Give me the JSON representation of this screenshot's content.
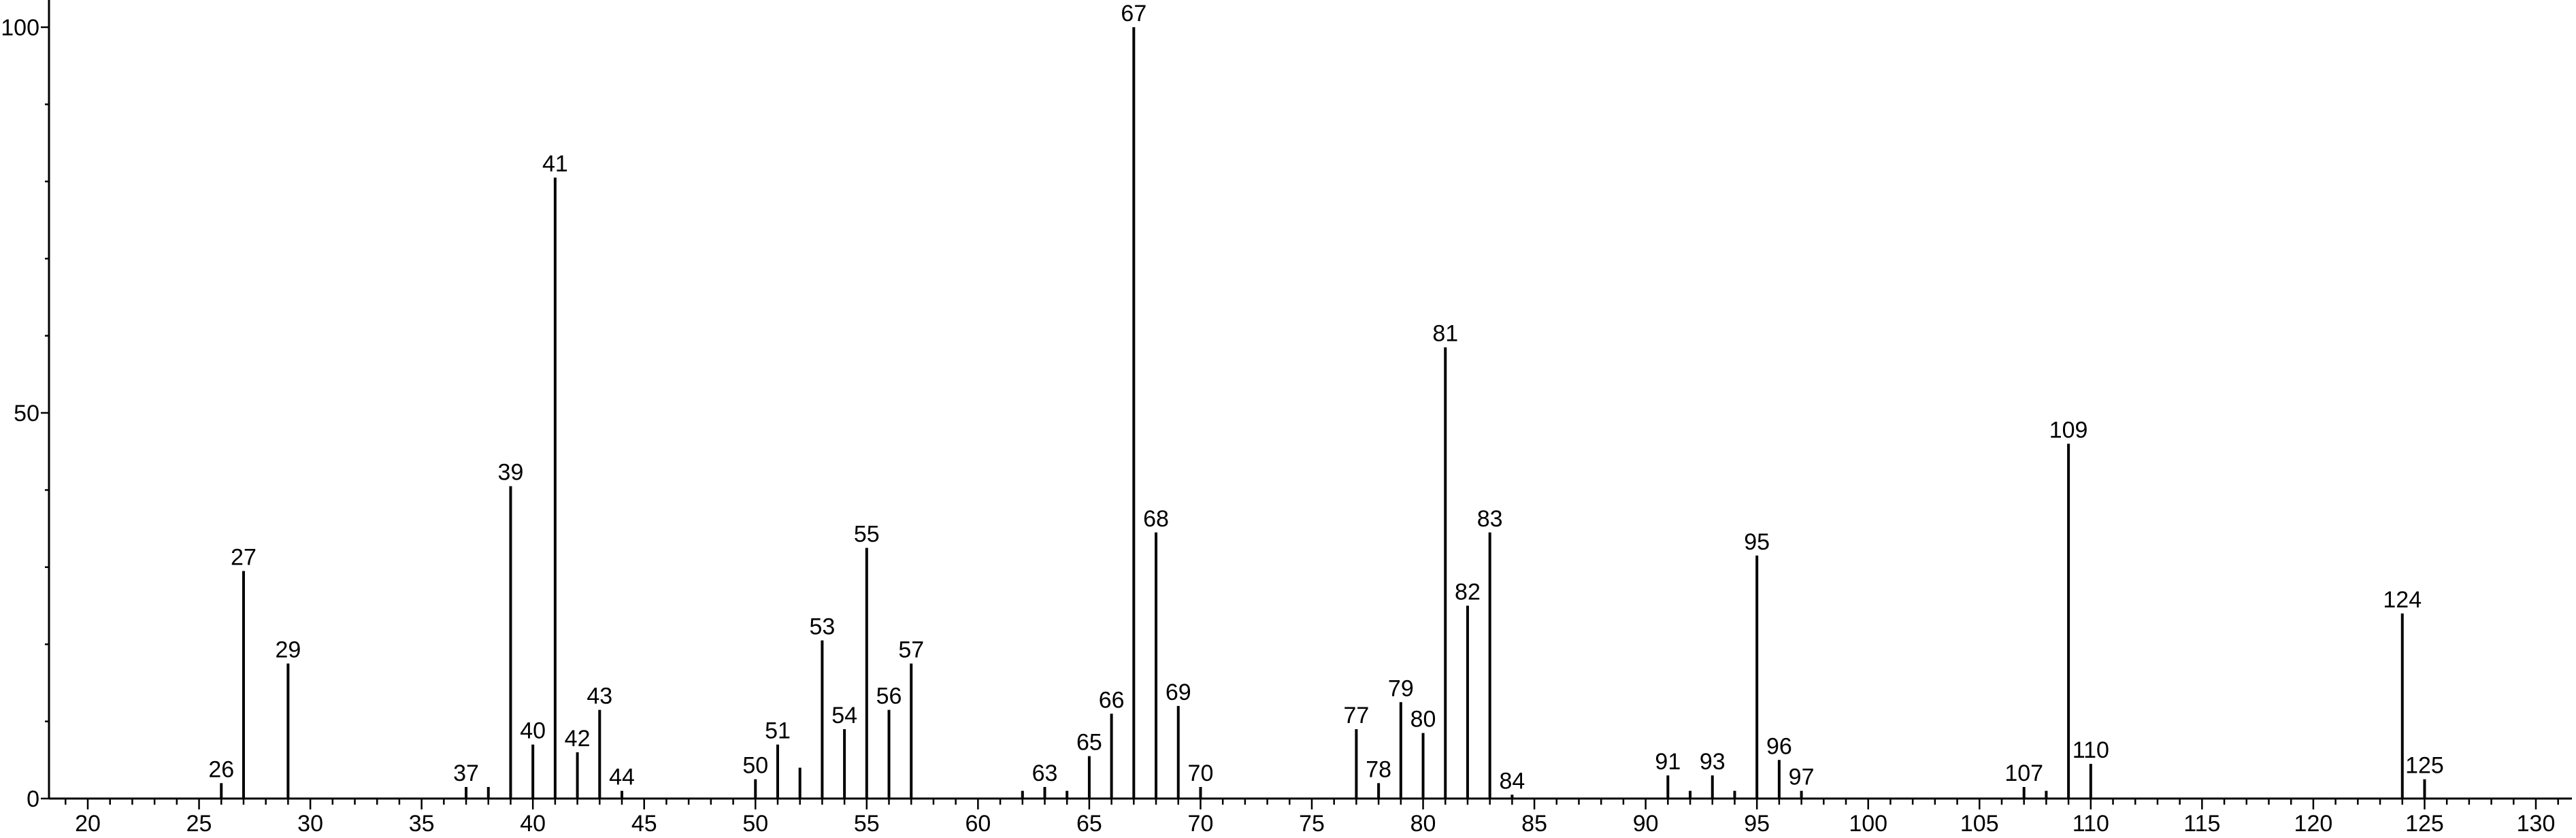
{
  "chart_data": {
    "type": "bar",
    "title": "",
    "xlabel": "",
    "ylabel": "",
    "xlim": [
      18.3,
      131.5
    ],
    "ylim": [
      0,
      102
    ],
    "x_major_ticks": [
      20,
      25,
      30,
      35,
      40,
      45,
      50,
      55,
      60,
      65,
      70,
      75,
      80,
      85,
      90,
      95,
      100,
      105,
      110,
      115,
      120,
      125,
      130
    ],
    "y_ticks": [
      0,
      50,
      100
    ],
    "peaks": [
      {
        "mz": 26,
        "intensity": 2,
        "label": "26"
      },
      {
        "mz": 27,
        "intensity": 29.5,
        "label": "27"
      },
      {
        "mz": 29,
        "intensity": 17.5,
        "label": "29"
      },
      {
        "mz": 37,
        "intensity": 1.5,
        "label": "37"
      },
      {
        "mz": 38,
        "intensity": 1.5,
        "label": ""
      },
      {
        "mz": 39,
        "intensity": 40.5,
        "label": "39"
      },
      {
        "mz": 40,
        "intensity": 7,
        "label": "40"
      },
      {
        "mz": 41,
        "intensity": 80.5,
        "label": "41"
      },
      {
        "mz": 42,
        "intensity": 6,
        "label": "42"
      },
      {
        "mz": 43,
        "intensity": 11.5,
        "label": "43"
      },
      {
        "mz": 44,
        "intensity": 1,
        "label": "44"
      },
      {
        "mz": 50,
        "intensity": 2.5,
        "label": "50"
      },
      {
        "mz": 51,
        "intensity": 7,
        "label": "51"
      },
      {
        "mz": 52,
        "intensity": 4,
        "label": ""
      },
      {
        "mz": 53,
        "intensity": 20.5,
        "label": "53"
      },
      {
        "mz": 54,
        "intensity": 9,
        "label": "54"
      },
      {
        "mz": 55,
        "intensity": 32.5,
        "label": "55"
      },
      {
        "mz": 56,
        "intensity": 11.5,
        "label": "56"
      },
      {
        "mz": 57,
        "intensity": 17.5,
        "label": "57"
      },
      {
        "mz": 62,
        "intensity": 1,
        "label": ""
      },
      {
        "mz": 63,
        "intensity": 1.5,
        "label": "63"
      },
      {
        "mz": 64,
        "intensity": 1,
        "label": ""
      },
      {
        "mz": 65,
        "intensity": 5.5,
        "label": "65"
      },
      {
        "mz": 66,
        "intensity": 11,
        "label": "66"
      },
      {
        "mz": 67,
        "intensity": 100,
        "label": "67"
      },
      {
        "mz": 68,
        "intensity": 34.5,
        "label": "68"
      },
      {
        "mz": 69,
        "intensity": 12,
        "label": "69"
      },
      {
        "mz": 70,
        "intensity": 1.5,
        "label": "70"
      },
      {
        "mz": 77,
        "intensity": 9,
        "label": "77"
      },
      {
        "mz": 78,
        "intensity": 2,
        "label": "78"
      },
      {
        "mz": 79,
        "intensity": 12.5,
        "label": "79"
      },
      {
        "mz": 80,
        "intensity": 8.5,
        "label": "80"
      },
      {
        "mz": 81,
        "intensity": 58.5,
        "label": "81"
      },
      {
        "mz": 82,
        "intensity": 25,
        "label": "82"
      },
      {
        "mz": 83,
        "intensity": 34.5,
        "label": "83"
      },
      {
        "mz": 84,
        "intensity": 0.5,
        "label": "84"
      },
      {
        "mz": 91,
        "intensity": 3,
        "label": "91"
      },
      {
        "mz": 92,
        "intensity": 1,
        "label": ""
      },
      {
        "mz": 93,
        "intensity": 3,
        "label": "93"
      },
      {
        "mz": 94,
        "intensity": 1,
        "label": ""
      },
      {
        "mz": 95,
        "intensity": 31.5,
        "label": "95"
      },
      {
        "mz": 96,
        "intensity": 5,
        "label": "96"
      },
      {
        "mz": 97,
        "intensity": 1,
        "label": "97"
      },
      {
        "mz": 107,
        "intensity": 1.5,
        "label": "107"
      },
      {
        "mz": 108,
        "intensity": 1,
        "label": ""
      },
      {
        "mz": 109,
        "intensity": 46,
        "label": "109"
      },
      {
        "mz": 110,
        "intensity": 4.5,
        "label": "110"
      },
      {
        "mz": 124,
        "intensity": 24,
        "label": "124"
      },
      {
        "mz": 125,
        "intensity": 2.5,
        "label": "125"
      }
    ]
  }
}
